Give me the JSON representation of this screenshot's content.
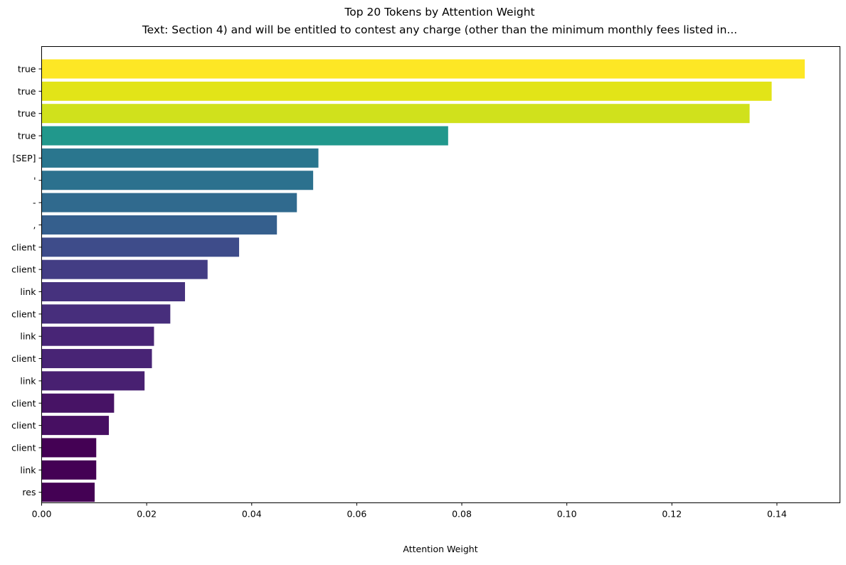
{
  "chart_data": {
    "type": "bar",
    "orientation": "horizontal",
    "title": "Top 20 Tokens by Attention Weight",
    "subtitle": "Text: Section 4) and will be entitled to contest any charge (other than the minimum monthly fees listed in...",
    "xlabel": "Attention Weight",
    "ylabel": "",
    "xlim": [
      0,
      0.152
    ],
    "x_ticks": [
      "0.00",
      "0.02",
      "0.04",
      "0.06",
      "0.08",
      "0.10",
      "0.12",
      "0.14"
    ],
    "grid": false,
    "colormap": "viridis",
    "categories": [
      "true",
      "true",
      "true",
      "true",
      "[SEP]",
      "'",
      "-",
      ",",
      "client",
      "client",
      "link",
      "client",
      "link",
      "client",
      "link",
      "client",
      "client",
      "client",
      "link",
      "res"
    ],
    "values": [
      0.1453,
      0.139,
      0.1348,
      0.0774,
      0.0527,
      0.0517,
      0.0486,
      0.0448,
      0.0376,
      0.0316,
      0.0273,
      0.0245,
      0.0214,
      0.021,
      0.0196,
      0.0138,
      0.0128,
      0.0104,
      0.0104,
      0.0101
    ],
    "colors": [
      "#fde725",
      "#e2e418",
      "#d0e11c",
      "#21988c",
      "#2a768e",
      "#2c718e",
      "#306a8e",
      "#355f8d",
      "#3e4c8a",
      "#433d84",
      "#46327e",
      "#472e7c",
      "#482576",
      "#482475",
      "#482071",
      "#471365",
      "#470f62",
      "#440154",
      "#440154",
      "#440154"
    ]
  }
}
